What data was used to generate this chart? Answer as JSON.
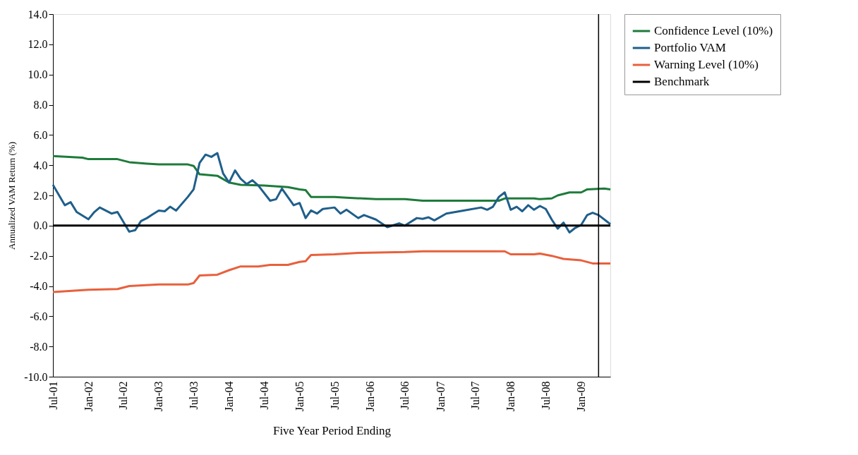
{
  "chart_data": {
    "type": "line",
    "xlabel": "Five Year Period Ending",
    "ylabel": "Annualized VAM Return (%)",
    "xlim": [
      "2001-07",
      "2009-06"
    ],
    "xticks": [
      {
        "value": "2001-07",
        "label": "Jul-01"
      },
      {
        "value": "2002-01",
        "label": "Jan-02"
      },
      {
        "value": "2002-07",
        "label": "Jul-02"
      },
      {
        "value": "2003-01",
        "label": "Jan-03"
      },
      {
        "value": "2003-07",
        "label": "Jul-03"
      },
      {
        "value": "2004-01",
        "label": "Jan-04"
      },
      {
        "value": "2004-07",
        "label": "Jul-04"
      },
      {
        "value": "2005-01",
        "label": "Jan-05"
      },
      {
        "value": "2005-07",
        "label": "Jul-05"
      },
      {
        "value": "2006-01",
        "label": "Jan-06"
      },
      {
        "value": "2006-07",
        "label": "Jul-06"
      },
      {
        "value": "2007-01",
        "label": "Jan-07"
      },
      {
        "value": "2007-07",
        "label": "Jul-07"
      },
      {
        "value": "2008-01",
        "label": "Jan-08"
      },
      {
        "value": "2008-07",
        "label": "Jul-08"
      },
      {
        "value": "2009-01",
        "label": "Jan-09"
      }
    ],
    "ylim": [
      -10,
      14
    ],
    "yticks": [
      {
        "value": -10,
        "label": "-10.0"
      },
      {
        "value": -8,
        "label": "-8.0"
      },
      {
        "value": -6,
        "label": "-6.0"
      },
      {
        "value": -4,
        "label": "-4.0"
      },
      {
        "value": -2,
        "label": "-2.0"
      },
      {
        "value": 0,
        "label": "0.0"
      },
      {
        "value": 2,
        "label": "2.0"
      },
      {
        "value": 4,
        "label": "4.0"
      },
      {
        "value": 6,
        "label": "6.0"
      },
      {
        "value": 8,
        "label": "8.0"
      },
      {
        "value": 10,
        "label": "10.0"
      },
      {
        "value": 12,
        "label": "12.0"
      },
      {
        "value": 14,
        "label": "14.0"
      }
    ],
    "grid": false,
    "legend": "right",
    "marker": "none",
    "line_style": "solid",
    "ref_lines": [
      {
        "axis": "x",
        "value": "2009-04",
        "color": "#000000"
      }
    ],
    "series": [
      {
        "name": "Confidence Level (10%)",
        "color": "#1e7b3a",
        "x": [
          "2001-07",
          "2001-12",
          "2002-01",
          "2002-06",
          "2002-08",
          "2002-11",
          "2003-01",
          "2003-06",
          "2003-07",
          "2003-08",
          "2003-11",
          "2004-01",
          "2004-03",
          "2004-07",
          "2004-11",
          "2005-01",
          "2005-02",
          "2005-03",
          "2005-07",
          "2005-09",
          "2006-02",
          "2006-07",
          "2006-10",
          "2007-11",
          "2007-12",
          "2008-05",
          "2008-06",
          "2008-08",
          "2008-09",
          "2008-11",
          "2009-01",
          "2009-02",
          "2009-05",
          "2009-06"
        ],
        "values": [
          4.6,
          4.5,
          4.4,
          4.4,
          4.2,
          4.1,
          4.05,
          4.05,
          3.95,
          3.4,
          3.3,
          2.85,
          2.7,
          2.65,
          2.55,
          2.4,
          2.35,
          1.9,
          1.9,
          1.85,
          1.75,
          1.75,
          1.65,
          1.65,
          1.8,
          1.8,
          1.75,
          1.8,
          2.0,
          2.2,
          2.2,
          2.4,
          2.45,
          2.4
        ]
      },
      {
        "name": "Portfolio VAM",
        "color": "#1f5f8b",
        "x": [
          "2001-07",
          "2001-09",
          "2001-10",
          "2001-11",
          "2002-01",
          "2002-02",
          "2002-03",
          "2002-05",
          "2002-06",
          "2002-08",
          "2002-09",
          "2002-10",
          "2002-11",
          "2002-12",
          "2003-01",
          "2003-02",
          "2003-03",
          "2003-04",
          "2003-06",
          "2003-07",
          "2003-08",
          "2003-09",
          "2003-10",
          "2003-11",
          "2003-12",
          "2004-01",
          "2004-02",
          "2004-03",
          "2004-04",
          "2004-05",
          "2004-06",
          "2004-08",
          "2004-09",
          "2004-10",
          "2004-12",
          "2005-01",
          "2005-02",
          "2005-03",
          "2005-04",
          "2005-05",
          "2005-07",
          "2005-08",
          "2005-09",
          "2005-11",
          "2005-12",
          "2006-02",
          "2006-04",
          "2006-06",
          "2006-07",
          "2006-09",
          "2006-10",
          "2006-11",
          "2006-12",
          "2007-02",
          "2007-05",
          "2007-08",
          "2007-09",
          "2007-10",
          "2007-11",
          "2007-12",
          "2008-01",
          "2008-02",
          "2008-03",
          "2008-04",
          "2008-05",
          "2008-06",
          "2008-07",
          "2008-08",
          "2008-09",
          "2008-10",
          "2008-11",
          "2008-12",
          "2009-01",
          "2009-02",
          "2009-03",
          "2009-04",
          "2009-06"
        ],
        "values": [
          2.7,
          1.35,
          1.55,
          0.9,
          0.42,
          0.9,
          1.2,
          0.8,
          0.9,
          -0.4,
          -0.3,
          0.3,
          0.5,
          0.75,
          1.0,
          0.95,
          1.25,
          1.0,
          1.9,
          2.4,
          4.15,
          4.7,
          4.55,
          4.8,
          3.45,
          2.85,
          3.65,
          3.1,
          2.75,
          3.0,
          2.65,
          1.65,
          1.75,
          2.45,
          1.35,
          1.5,
          0.5,
          1.0,
          0.8,
          1.1,
          1.2,
          0.8,
          1.05,
          0.5,
          0.7,
          0.4,
          -0.1,
          0.15,
          0.0,
          0.5,
          0.45,
          0.55,
          0.35,
          0.8,
          1.0,
          1.2,
          1.05,
          1.25,
          1.9,
          2.2,
          1.05,
          1.25,
          0.95,
          1.35,
          1.05,
          1.3,
          1.1,
          0.4,
          -0.2,
          0.2,
          -0.45,
          -0.15,
          0.05,
          0.7,
          0.85,
          0.7,
          0.1
        ]
      },
      {
        "name": "Warning Level (10%)",
        "color": "#e8603c",
        "x": [
          "2001-07",
          "2002-01",
          "2002-06",
          "2002-08",
          "2003-01",
          "2003-06",
          "2003-07",
          "2003-08",
          "2003-11",
          "2004-01",
          "2004-03",
          "2004-06",
          "2004-08",
          "2004-11",
          "2005-01",
          "2005-02",
          "2005-03",
          "2005-07",
          "2005-11",
          "2006-07",
          "2006-10",
          "2007-11",
          "2007-12",
          "2008-01",
          "2008-05",
          "2008-06",
          "2008-08",
          "2008-10",
          "2009-01",
          "2009-03",
          "2009-06"
        ],
        "values": [
          -4.4,
          -4.25,
          -4.2,
          -4.0,
          -3.9,
          -3.9,
          -3.8,
          -3.3,
          -3.25,
          -2.95,
          -2.7,
          -2.7,
          -2.6,
          -2.6,
          -2.4,
          -2.35,
          -1.95,
          -1.9,
          -1.8,
          -1.75,
          -1.7,
          -1.7,
          -1.7,
          -1.9,
          -1.9,
          -1.85,
          -2.0,
          -2.2,
          -2.3,
          -2.5,
          -2.5
        ]
      },
      {
        "name": "Benchmark",
        "color": "#000000",
        "x": [
          "2001-07",
          "2009-06"
        ],
        "values": [
          0,
          0
        ]
      }
    ]
  }
}
